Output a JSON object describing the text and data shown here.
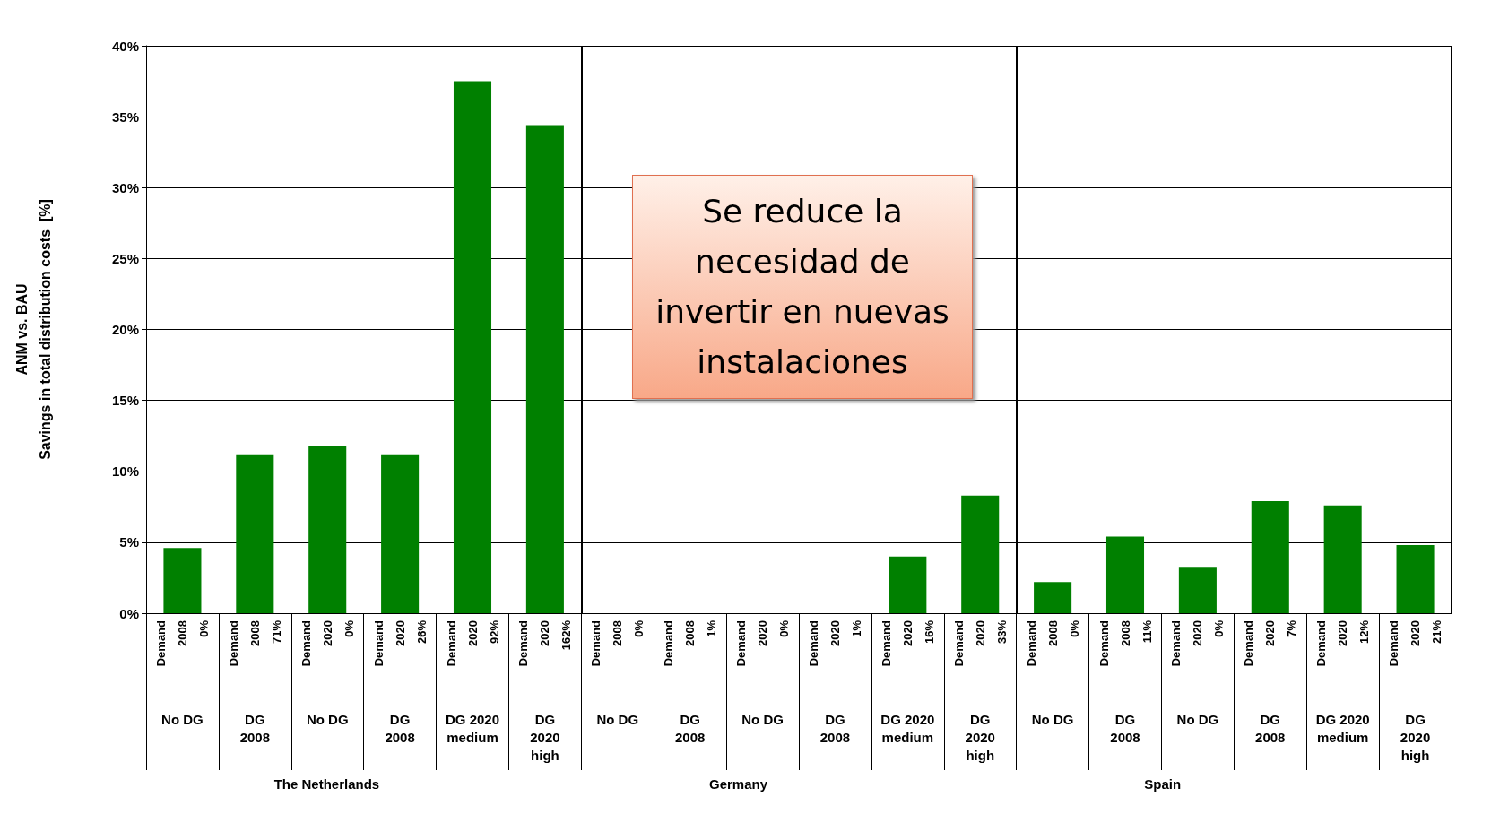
{
  "chart_data": {
    "type": "bar",
    "ylabel": "ANM vs. BAU\nSavings in total distribution costs  [%]",
    "categories": [
      "Demand 2008 0%\nNo DG",
      "Demand 2008 71%\nDG\n2008",
      "Demand 2020 0%\nNo DG",
      "Demand 2020 26%\nDG\n2008",
      "Demand 2020 92%\nDG 2020\nmedium",
      "Demand 2020 162%\nDG\n2020\nhigh",
      "Demand 2008 0%\nNo DG",
      "Demand 2008 1%\nDG\n2008",
      "Demand 2020 0%\nNo DG",
      "Demand 2020 1%\nDG\n2008",
      "Demand 2020 16%\nDG 2020\nmedium",
      "Demand 2020 33%\nDG\n2020\nhigh",
      "Demand 2008 0%\nNo DG",
      "Demand 2008 11%\nDG\n2008",
      "Demand 2020 0%\nNo DG",
      "Demand 2020 7%\nDG\n2008",
      "Demand 2020 12%\nDG 2020\nmedium",
      "Demand 2020 21%\nDG\n2020\nhigh"
    ],
    "values": [
      4.6,
      11.2,
      11.8,
      11.2,
      37.5,
      34.4,
      0,
      0,
      0,
      0,
      4.0,
      8.3,
      2.2,
      5.4,
      3.2,
      7.9,
      7.6,
      4.8
    ],
    "color": "#008000",
    "ylim": [
      0,
      40
    ],
    "yticks": [
      {
        "value": 0,
        "label": "0%"
      },
      {
        "value": 5,
        "label": "5%"
      },
      {
        "value": 10,
        "label": "10%"
      },
      {
        "value": 15,
        "label": "15%"
      },
      {
        "value": 20,
        "label": "20%"
      },
      {
        "value": 25,
        "label": "25%"
      },
      {
        "value": 30,
        "label": "30%"
      },
      {
        "value": 35,
        "label": "35%"
      },
      {
        "value": 40,
        "label": "40%"
      }
    ],
    "grid": "y",
    "annotations": [
      "Se reduce la necesidad de invertir en nuevas instalaciones",
      "The Netherlands",
      "Germany",
      "Spain"
    ]
  }
}
